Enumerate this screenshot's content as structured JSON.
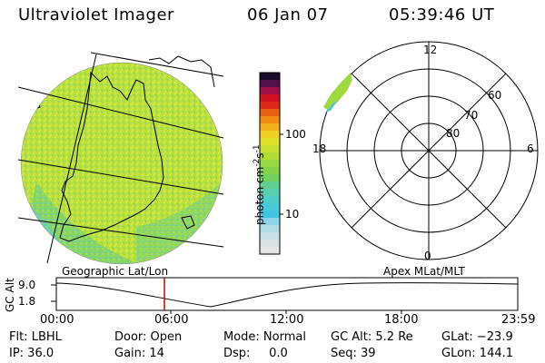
{
  "header": {
    "title": "Ultraviolet Imager",
    "date": "06 Jan 07",
    "time": "05:39:46 UT"
  },
  "colorbar": {
    "label": "photon cm-2s-1",
    "ticks": [
      "100",
      "10"
    ]
  },
  "polar_plot": {
    "mlt_labels": {
      "top": "12",
      "left": "18",
      "right": "6",
      "bottom": "0"
    },
    "lat_labels": [
      "60",
      "70",
      "80"
    ]
  },
  "panel_labels": {
    "left": "Geographic Lat/Lon",
    "right": "Apex MLat/MLT"
  },
  "altitude_plot": {
    "axis_label": "GC Alt",
    "y_ticks": [
      "9.0",
      "1.8"
    ],
    "x_ticks": [
      "00:00",
      "06:00",
      "12:00",
      "18:00",
      "23:59"
    ],
    "current_time_fraction": 0.2359
  },
  "info": {
    "flt": "Flt: LBHL",
    "ip": "IP: 36.0",
    "door": "Door: Open",
    "gain": "Gain: 14",
    "mode": "Mode: Normal",
    "dsp": "Dsp:     0.0",
    "gcalt": "GC Alt: 5.2 Re",
    "seq": "Seq: 39",
    "glat": "GLat: −23.9",
    "glon": "GLon: 144.1"
  },
  "colors": {
    "disk_main": "#c8e63c",
    "disk_green": "#8cd24a",
    "disk_cyan": "#5ad2c8",
    "marker": "#d00000"
  }
}
